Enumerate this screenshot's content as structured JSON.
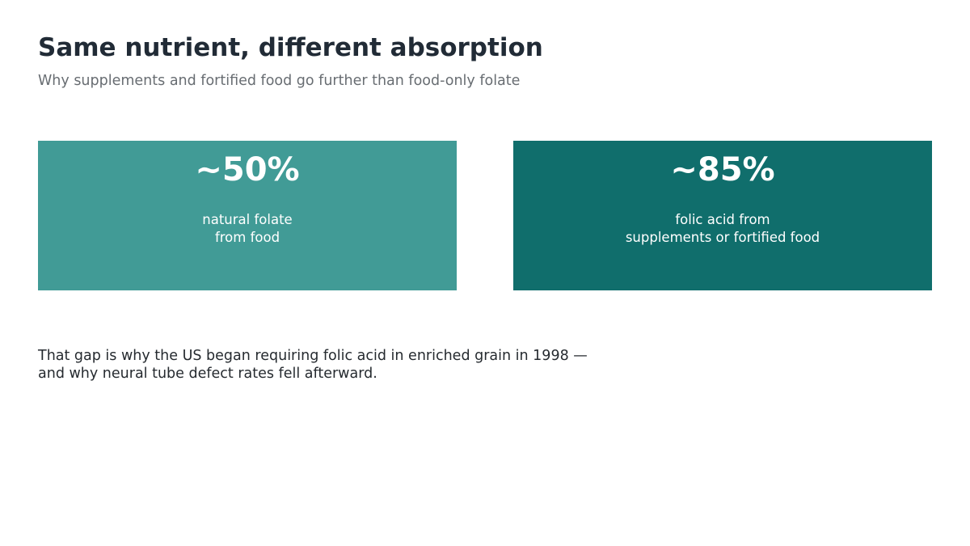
{
  "header": {
    "title": "Same nutrient, different absorption",
    "subtitle": "Why supplements and fortified food go further than food-only folate"
  },
  "cards": [
    {
      "value": "~50%",
      "label": "natural folate\nfrom food",
      "color": "#419b96"
    },
    {
      "value": "~85%",
      "label": "folic acid from\nsupplements or fortified food",
      "color": "#106e6c"
    }
  ],
  "note": "That gap is why the US began requiring folic acid in enriched grain in 1998 —\nand why neural tube defect rates fell afterward.",
  "colors": {
    "background": "#ffffff",
    "title": "#212b36",
    "subtitle": "#686d72",
    "body_text": "#252a2f"
  }
}
